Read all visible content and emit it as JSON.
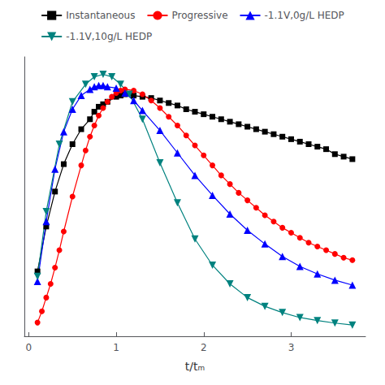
{
  "chart_data": {
    "type": "line",
    "xlabel": "t/tₘ",
    "xlim": [
      -0.05,
      3.85
    ],
    "xticks": [
      0,
      1,
      2,
      3
    ],
    "ylim": [
      0,
      1.12
    ],
    "yticks": [],
    "tick_labels": "x",
    "grid": false,
    "legend": "top",
    "series": [
      {
        "name": "Instantaneous",
        "color": "black",
        "marker": "square",
        "line_style": "solid",
        "x": [
          0.1,
          0.2,
          0.3,
          0.4,
          0.5,
          0.6,
          0.7,
          0.75,
          0.8,
          0.85,
          0.9,
          1.0,
          1.05,
          1.1,
          1.2,
          1.3,
          1.4,
          1.5,
          1.6,
          1.7,
          1.8,
          1.9,
          2.0,
          2.1,
          2.2,
          2.3,
          2.4,
          2.5,
          2.6,
          2.7,
          2.8,
          2.9,
          3.0,
          3.1,
          3.2,
          3.3,
          3.4,
          3.5,
          3.6,
          3.7
        ],
        "values": [
          0.26,
          0.44,
          0.58,
          0.69,
          0.77,
          0.83,
          0.87,
          0.9,
          0.92,
          0.93,
          0.94,
          0.96,
          0.965,
          0.97,
          0.965,
          0.96,
          0.955,
          0.945,
          0.935,
          0.925,
          0.91,
          0.9,
          0.89,
          0.88,
          0.87,
          0.86,
          0.85,
          0.84,
          0.83,
          0.82,
          0.81,
          0.8,
          0.79,
          0.78,
          0.77,
          0.76,
          0.75,
          0.73,
          0.72,
          0.71
        ]
      },
      {
        "name": "Progressive",
        "color": "red",
        "marker": "circle",
        "line_style": "solid",
        "x": [
          0.1,
          0.15,
          0.2,
          0.25,
          0.3,
          0.35,
          0.4,
          0.5,
          0.6,
          0.65,
          0.7,
          0.75,
          0.8,
          0.85,
          0.9,
          0.95,
          1.0,
          1.05,
          1.1,
          1.2,
          1.3,
          1.4,
          1.5,
          1.6,
          1.7,
          1.8,
          1.9,
          2.0,
          2.1,
          2.2,
          2.3,
          2.4,
          2.5,
          2.6,
          2.7,
          2.8,
          2.9,
          3.0,
          3.1,
          3.2,
          3.3,
          3.4,
          3.5,
          3.6,
          3.7
        ],
        "values": [
          0.055,
          0.1,
          0.155,
          0.21,
          0.275,
          0.345,
          0.42,
          0.56,
          0.685,
          0.745,
          0.8,
          0.845,
          0.885,
          0.915,
          0.94,
          0.96,
          0.975,
          0.985,
          0.99,
          0.985,
          0.97,
          0.945,
          0.915,
          0.88,
          0.845,
          0.805,
          0.765,
          0.725,
          0.685,
          0.645,
          0.61,
          0.575,
          0.545,
          0.515,
          0.485,
          0.46,
          0.435,
          0.415,
          0.395,
          0.375,
          0.36,
          0.345,
          0.33,
          0.315,
          0.305
        ]
      },
      {
        "name": "-1.1V,0g/L HEDP",
        "color": "blue",
        "marker": "triangle-up",
        "line_style": "solid",
        "x": [
          0.1,
          0.2,
          0.3,
          0.4,
          0.5,
          0.6,
          0.7,
          0.75,
          0.8,
          0.85,
          0.9,
          1.0,
          1.1,
          1.2,
          1.3,
          1.5,
          1.7,
          1.9,
          2.1,
          2.3,
          2.5,
          2.7,
          2.9,
          3.1,
          3.3,
          3.5,
          3.7
        ],
        "values": [
          0.22,
          0.46,
          0.67,
          0.82,
          0.91,
          0.965,
          0.99,
          1.0,
          1.005,
          1.005,
          1.0,
          0.995,
          0.975,
          0.945,
          0.905,
          0.825,
          0.735,
          0.645,
          0.565,
          0.49,
          0.425,
          0.37,
          0.32,
          0.28,
          0.25,
          0.225,
          0.205
        ]
      },
      {
        "name": "-1.1V,10g/L HEDP",
        "color": "#00827F",
        "marker": "triangle-down",
        "line_style": "solid",
        "x": [
          0.1,
          0.2,
          0.35,
          0.5,
          0.65,
          0.75,
          0.85,
          0.95,
          1.05,
          1.15,
          1.3,
          1.5,
          1.7,
          1.9,
          2.1,
          2.3,
          2.5,
          2.7,
          2.9,
          3.1,
          3.3,
          3.5,
          3.7
        ],
        "values": [
          0.24,
          0.5,
          0.77,
          0.94,
          1.01,
          1.04,
          1.05,
          1.04,
          1.01,
          0.97,
          0.87,
          0.695,
          0.535,
          0.39,
          0.285,
          0.21,
          0.155,
          0.12,
          0.095,
          0.075,
          0.063,
          0.053,
          0.045
        ]
      }
    ]
  }
}
